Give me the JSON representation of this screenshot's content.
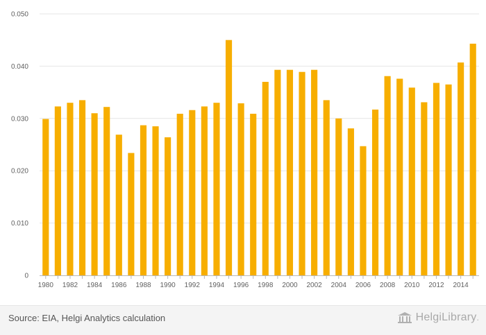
{
  "chart_data": {
    "type": "bar",
    "title": "",
    "xlabel": "",
    "ylabel": "",
    "categories": [
      "1980",
      "1981",
      "1982",
      "1983",
      "1984",
      "1985",
      "1986",
      "1987",
      "1988",
      "1989",
      "1990",
      "1991",
      "1992",
      "1993",
      "1994",
      "1995",
      "1996",
      "1997",
      "1998",
      "1999",
      "2000",
      "2001",
      "2002",
      "2003",
      "2004",
      "2005",
      "2006",
      "2007",
      "2008",
      "2009",
      "2010",
      "2011",
      "2012",
      "2013",
      "2014",
      "2015"
    ],
    "values": [
      0.0299,
      0.0323,
      0.033,
      0.0335,
      0.031,
      0.0322,
      0.0269,
      0.0234,
      0.0287,
      0.0285,
      0.0264,
      0.0309,
      0.0316,
      0.0323,
      0.033,
      0.045,
      0.0329,
      0.0309,
      0.037,
      0.0393,
      0.0393,
      0.0389,
      0.0393,
      0.0335,
      0.03,
      0.0281,
      0.0247,
      0.0317,
      0.0381,
      0.0376,
      0.0359,
      0.0331,
      0.0368,
      0.0365,
      0.0407,
      0.0443
    ],
    "ylim": [
      0,
      0.05
    ],
    "yticks": [
      0,
      0.01,
      0.02,
      0.03,
      0.04,
      0.05
    ],
    "ytick_labels": [
      "0",
      "0.010",
      "0.020",
      "0.030",
      "0.040",
      "0.050"
    ],
    "xtick_labels": [
      "1980",
      "1982",
      "1984",
      "1986",
      "1988",
      "1990",
      "1992",
      "1994",
      "1996",
      "1998",
      "2000",
      "2002",
      "2004",
      "2006",
      "2008",
      "2010",
      "2012",
      "2014"
    ],
    "grid": true,
    "bar_color": "#f7ae00",
    "grid_color": "#e6e6e6"
  },
  "footer": {
    "source": "Source: EIA, Helgi Analytics calculation",
    "brand": "HelgiLibrary",
    "brand_dot": "."
  }
}
